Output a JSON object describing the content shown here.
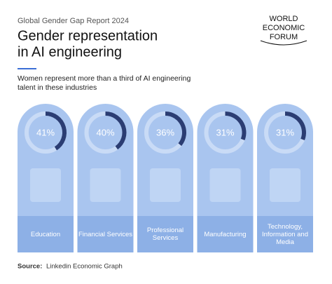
{
  "chart_data": {
    "type": "donut",
    "report": "Global Gender Gap Report 2024",
    "title": [
      "Gender representation",
      "in AI engineering"
    ],
    "subtitle": [
      "Women represent more than a third of AI engineering",
      "talent in these industries"
    ],
    "logo": [
      "WORLD",
      "ECONOMIC",
      "FORUM"
    ],
    "categories": [
      "Education",
      "Financial Services",
      "Professional Services",
      "Manufacturing",
      "Technology, Information and Media"
    ],
    "values": [
      41,
      40,
      36,
      31,
      31
    ],
    "value_labels": [
      "41%",
      "40%",
      "36%",
      "31%",
      "31%"
    ],
    "ylim": [
      0,
      100
    ],
    "color": "#2b3d73",
    "source_label": "Source:",
    "source": "Linkedin Economic Graph"
  }
}
